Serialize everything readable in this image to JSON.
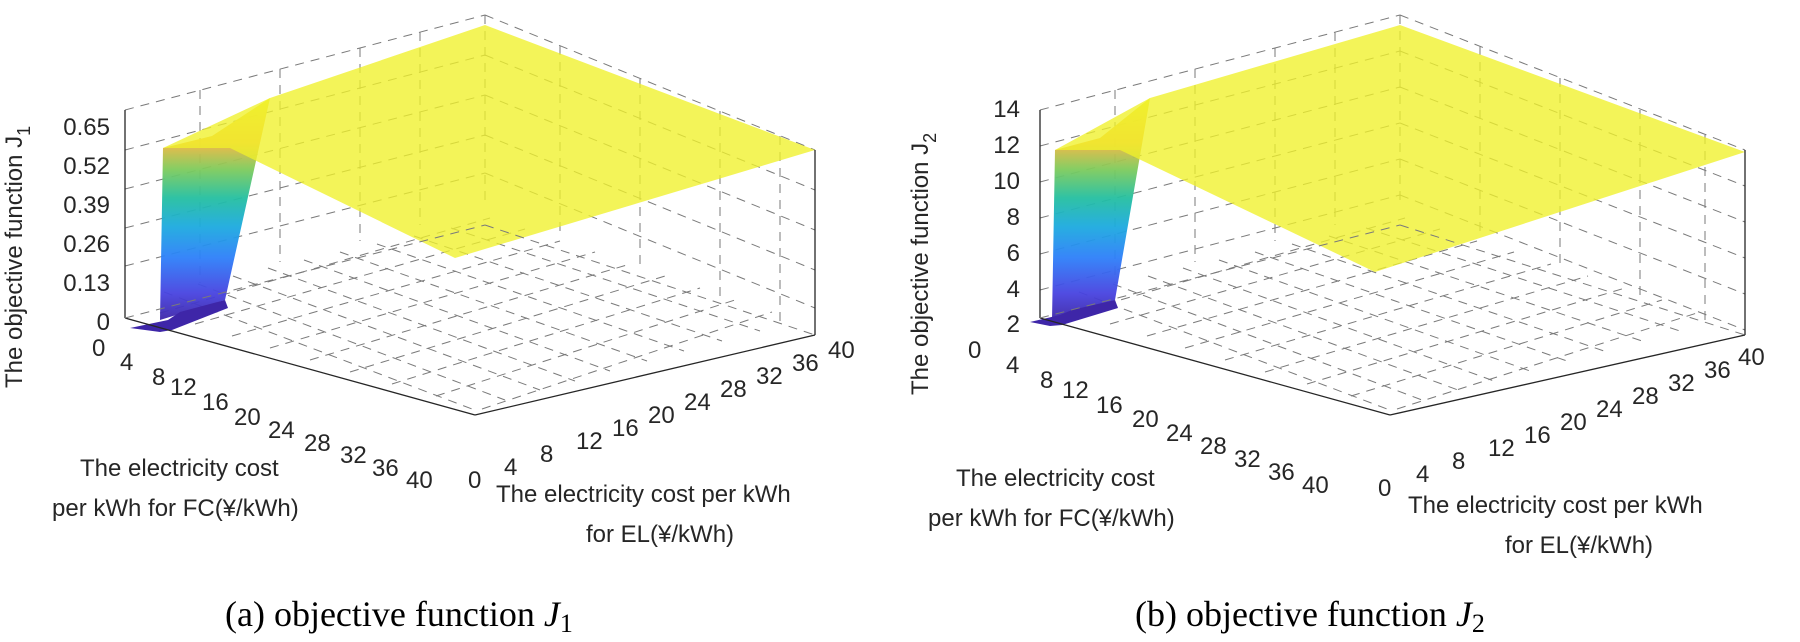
{
  "figure": {
    "panels": [
      {
        "id": "a",
        "caption_prefix": "(a) objective function ",
        "caption_var": "J",
        "caption_sub": "1",
        "zlabel_main": "The objective function J",
        "zlabel_sub": "1",
        "xlabel_lines": [
          "The electricity cost",
          "per kWh for FC(¥/kWh)"
        ],
        "ylabel_lines": [
          "The electricity cost per kWh",
          "for EL(¥/kWh)"
        ]
      },
      {
        "id": "b",
        "caption_prefix": "(b) objective function ",
        "caption_var": "J",
        "caption_sub": "2",
        "zlabel_main": "The objective function J",
        "zlabel_sub": "2",
        "xlabel_lines": [
          "The electricity cost",
          "per kWh for FC(¥/kWh)"
        ],
        "ylabel_lines": [
          "The electricity cost per kWh",
          "for EL(¥/kWh)"
        ]
      }
    ]
  },
  "chart_data": [
    {
      "type": "surface",
      "title": "(a) objective function J1",
      "xlabel": "The electricity cost per kWh for FC(¥/kWh)",
      "ylabel": "The electricity cost per kWh for EL(¥/kWh)",
      "zlabel": "The objective function J1",
      "x_ticks": [
        0,
        4,
        8,
        12,
        16,
        20,
        24,
        28,
        32,
        36,
        40
      ],
      "y_ticks": [
        0,
        4,
        8,
        12,
        16,
        20,
        24,
        28,
        32,
        36,
        40
      ],
      "z_ticks": [
        "0",
        "0.13",
        "0.26",
        "0.39",
        "0.52",
        "0.65"
      ],
      "xlim": [
        0,
        40
      ],
      "ylim": [
        0,
        40
      ],
      "zlim": [
        0,
        0.65
      ],
      "surface": {
        "plateau_value": 0.65,
        "base_value": 0.0,
        "rise_fc_range": [
          1,
          4
        ],
        "rise_el_range": [
          0,
          4
        ],
        "description": "J1 is near 0 for FC cost < 1 and EL cost < 4, rising steeply to a flat plateau of 0.65 elsewhere"
      },
      "grid": true,
      "colormap": "parula"
    },
    {
      "type": "surface",
      "title": "(b) objective function J2",
      "xlabel": "The electricity cost per kWh for FC(¥/kWh)",
      "ylabel": "The electricity cost per kWh for EL(¥/kWh)",
      "zlabel": "The objective function J2",
      "x_ticks": [
        0,
        4,
        8,
        12,
        16,
        20,
        24,
        28,
        32,
        36,
        40
      ],
      "y_ticks": [
        0,
        4,
        8,
        12,
        16,
        20,
        24,
        28,
        32,
        36,
        40
      ],
      "z_ticks": [
        "2",
        "4",
        "6",
        "8",
        "10",
        "12",
        "14"
      ],
      "xlim": [
        0,
        40
      ],
      "ylim": [
        0,
        40
      ],
      "zlim": [
        2,
        14
      ],
      "surface": {
        "plateau_value": 14,
        "base_value": 2,
        "rise_fc_range": [
          1,
          4
        ],
        "rise_el_range": [
          0,
          4
        ],
        "description": "J2 is near 2 for FC cost < 1 and EL cost < 4, rising steeply to a flat plateau of 14 elsewhere"
      },
      "grid": true,
      "colormap": "parula"
    }
  ]
}
